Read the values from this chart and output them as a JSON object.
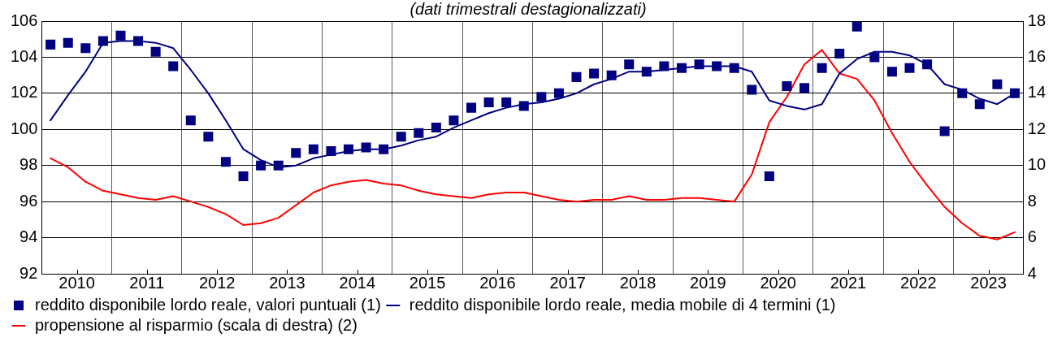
{
  "chart_data": {
    "type": "line",
    "title": "(dati trimestrali destagionalizzati)",
    "x": [
      2010.125,
      2010.375,
      2010.625,
      2010.875,
      2011.125,
      2011.375,
      2011.625,
      2011.875,
      2012.125,
      2012.375,
      2012.625,
      2012.875,
      2013.125,
      2013.375,
      2013.625,
      2013.875,
      2014.125,
      2014.375,
      2014.625,
      2014.875,
      2015.125,
      2015.375,
      2015.625,
      2015.875,
      2016.125,
      2016.375,
      2016.625,
      2016.875,
      2017.125,
      2017.375,
      2017.625,
      2017.875,
      2018.125,
      2018.375,
      2018.625,
      2018.875,
      2019.125,
      2019.375,
      2019.625,
      2019.875,
      2020.125,
      2020.375,
      2020.625,
      2020.875,
      2021.125,
      2021.375,
      2021.625,
      2021.875,
      2022.125,
      2022.375,
      2022.625,
      2022.875,
      2023.125,
      2023.375,
      2023.625,
      2023.875
    ],
    "xlim": [
      2010,
      2024
    ],
    "xticks": [
      {
        "value": 2010,
        "label": null
      },
      {
        "value": 2010.5,
        "label": "2010"
      },
      {
        "value": 2011,
        "label": null
      },
      {
        "value": 2011.5,
        "label": "2011"
      },
      {
        "value": 2012,
        "label": null
      },
      {
        "value": 2012.5,
        "label": "2012"
      },
      {
        "value": 2013,
        "label": null
      },
      {
        "value": 2013.5,
        "label": "2013"
      },
      {
        "value": 2014,
        "label": null
      },
      {
        "value": 2014.5,
        "label": "2014"
      },
      {
        "value": 2015,
        "label": null
      },
      {
        "value": 2015.5,
        "label": "2015"
      },
      {
        "value": 2016,
        "label": null
      },
      {
        "value": 2016.5,
        "label": "2016"
      },
      {
        "value": 2017,
        "label": null
      },
      {
        "value": 2017.5,
        "label": "2017"
      },
      {
        "value": 2018,
        "label": null
      },
      {
        "value": 2018.5,
        "label": "2018"
      },
      {
        "value": 2019,
        "label": null
      },
      {
        "value": 2019.5,
        "label": "2019"
      },
      {
        "value": 2020,
        "label": null
      },
      {
        "value": 2020.5,
        "label": "2020"
      },
      {
        "value": 2021,
        "label": null
      },
      {
        "value": 2021.5,
        "label": "2021"
      },
      {
        "value": 2022,
        "label": null
      },
      {
        "value": 2022.5,
        "label": "2022"
      },
      {
        "value": 2023,
        "label": null
      },
      {
        "value": 2023.5,
        "label": "2023"
      },
      {
        "value": 2024,
        "label": null
      }
    ],
    "ylim": [
      92,
      106
    ],
    "yticks": [
      92,
      94,
      96,
      98,
      100,
      102,
      104,
      106
    ],
    "y2lim": [
      4,
      18
    ],
    "y2ticks": [
      4,
      6,
      8,
      10,
      12,
      14,
      16,
      18
    ],
    "grid": true,
    "legend": "bottom left",
    "series": [
      {
        "name": "reddito disponibile lordo reale, valori puntuali (1)",
        "type": "scatter",
        "marker": "square",
        "color": "#000080",
        "values": [
          104.7,
          104.8,
          104.5,
          104.9,
          105.2,
          104.9,
          104.3,
          103.5,
          100.5,
          99.6,
          98.2,
          97.4,
          98.0,
          98.0,
          98.7,
          98.9,
          98.8,
          98.9,
          99.0,
          98.9,
          99.6,
          99.8,
          100.1,
          100.5,
          101.2,
          101.5,
          101.5,
          101.3,
          101.8,
          102.0,
          102.9,
          103.1,
          103.0,
          103.6,
          103.2,
          103.5,
          103.4,
          103.6,
          103.5,
          103.4,
          102.2,
          97.4,
          102.4,
          102.3,
          103.4,
          104.2,
          105.7,
          104.0,
          103.2,
          103.4,
          103.6,
          99.9,
          102.0,
          101.4,
          102.5,
          102.0
        ]
      },
      {
        "name": "reddito disponibile lordo reale, media mobile di 4 termini (1)",
        "color": "#000080",
        "values": [
          100.5,
          101.9,
          103.2,
          104.8,
          104.9,
          104.9,
          104.8,
          104.5,
          103.3,
          102.0,
          100.5,
          98.9,
          98.3,
          97.9,
          98.0,
          98.4,
          98.6,
          98.8,
          98.9,
          98.9,
          99.1,
          99.4,
          99.6,
          100.1,
          100.5,
          100.9,
          101.2,
          101.4,
          101.5,
          101.7,
          102.0,
          102.5,
          102.8,
          103.2,
          103.2,
          103.3,
          103.4,
          103.5,
          103.5,
          103.5,
          103.2,
          101.6,
          101.3,
          101.1,
          101.4,
          103.1,
          103.9,
          104.3,
          104.3,
          104.1,
          103.6,
          102.5,
          102.2,
          101.7,
          101.4,
          102.0
        ]
      },
      {
        "name": "propensione al risparmio (scala di destra) (2)",
        "axis": "y2",
        "color": "#ff0000",
        "values": [
          10.4,
          9.9,
          9.1,
          8.6,
          8.4,
          8.2,
          8.1,
          8.3,
          8.0,
          7.7,
          7.3,
          6.7,
          6.8,
          7.1,
          7.8,
          8.5,
          8.9,
          9.1,
          9.2,
          9.0,
          8.9,
          8.6,
          8.4,
          8.3,
          8.2,
          8.4,
          8.5,
          8.5,
          8.3,
          8.1,
          8.0,
          8.1,
          8.1,
          8.3,
          8.1,
          8.1,
          8.2,
          8.2,
          8.1,
          8.0,
          9.5,
          12.4,
          13.8,
          15.6,
          16.4,
          15.1,
          14.8,
          13.6,
          11.8,
          10.2,
          8.9,
          7.7,
          6.8,
          6.1,
          5.9,
          6.3
        ]
      }
    ]
  }
}
